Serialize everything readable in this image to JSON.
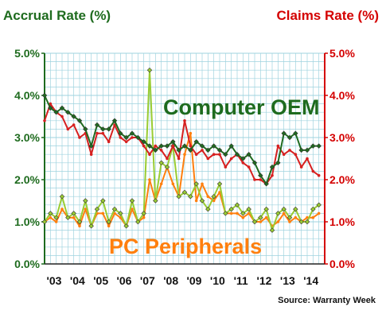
{
  "chart_data": {
    "type": "line",
    "left_axis_title": "Accrual Rate (%)",
    "right_axis_title": "Claims Rate (%)",
    "y_ticks": [
      "0.0%",
      "1.0%",
      "2.0%",
      "3.0%",
      "4.0%",
      "5.0%"
    ],
    "ylim": [
      0,
      5
    ],
    "x_ticks": [
      "'03",
      "'04",
      "'05",
      "'06",
      "'07",
      "'08",
      "'09",
      "'10",
      "'11",
      "'12",
      "'13",
      "'14"
    ],
    "xlim": [
      2003,
      2015
    ],
    "grid": true,
    "annotations": [
      "Computer OEM",
      "PC Peripherals"
    ],
    "source": "Source: Warranty Week",
    "colors": {
      "oem_accrual": "#1f6b1f",
      "oem_claims": "#d62020",
      "pc_accrual": "#99cc33",
      "pc_claims": "#ff7f0e",
      "left_axis": "#1e6b1e",
      "right_axis": "#d40000",
      "grid": "#9fd3df"
    },
    "series": [
      {
        "key": "oem_accrual",
        "axis": "left",
        "x": [
          2003.0,
          2003.25,
          2003.5,
          2003.75,
          2004.0,
          2004.25,
          2004.5,
          2004.75,
          2005.0,
          2005.25,
          2005.5,
          2005.75,
          2006.0,
          2006.25,
          2006.5,
          2006.75,
          2007.0,
          2007.25,
          2007.5,
          2007.75,
          2008.0,
          2008.25,
          2008.5,
          2008.75,
          2009.0,
          2009.25,
          2009.5,
          2009.75,
          2010.0,
          2010.25,
          2010.5,
          2010.75,
          2011.0,
          2011.25,
          2011.5,
          2011.75,
          2012.0,
          2012.25,
          2012.5,
          2012.75,
          2013.0,
          2013.25,
          2013.5,
          2013.75,
          2014.0,
          2014.25,
          2014.5,
          2014.75
        ],
        "y": [
          4.0,
          3.7,
          3.6,
          3.7,
          3.6,
          3.5,
          3.4,
          3.2,
          2.8,
          3.3,
          3.2,
          3.2,
          3.4,
          3.1,
          3.0,
          3.1,
          3.0,
          2.9,
          2.8,
          2.7,
          2.8,
          2.8,
          2.9,
          2.7,
          2.8,
          2.7,
          2.9,
          2.8,
          2.7,
          2.8,
          2.7,
          2.6,
          2.8,
          2.6,
          2.5,
          2.6,
          2.4,
          2.1,
          1.9,
          2.3,
          2.4,
          3.1,
          3.0,
          3.1,
          2.7,
          2.7,
          2.8,
          2.8
        ]
      },
      {
        "key": "oem_claims",
        "axis": "right",
        "x": [
          2003.0,
          2003.25,
          2003.5,
          2003.75,
          2004.0,
          2004.25,
          2004.5,
          2004.75,
          2005.0,
          2005.25,
          2005.5,
          2005.75,
          2006.0,
          2006.25,
          2006.5,
          2006.75,
          2007.0,
          2007.25,
          2007.5,
          2007.75,
          2008.0,
          2008.25,
          2008.5,
          2008.75,
          2009.0,
          2009.25,
          2009.5,
          2009.75,
          2010.0,
          2010.25,
          2010.5,
          2010.75,
          2011.0,
          2011.25,
          2011.5,
          2011.75,
          2012.0,
          2012.25,
          2012.5,
          2012.75,
          2013.0,
          2013.25,
          2013.5,
          2013.75,
          2014.0,
          2014.25,
          2014.5,
          2014.75
        ],
        "y": [
          3.4,
          3.8,
          3.6,
          3.5,
          3.2,
          3.3,
          3.0,
          3.1,
          2.6,
          3.1,
          3.1,
          2.9,
          3.3,
          3.0,
          2.9,
          3.0,
          3.0,
          2.8,
          2.6,
          2.8,
          2.7,
          2.5,
          2.8,
          2.5,
          3.4,
          2.8,
          2.6,
          2.7,
          2.5,
          2.6,
          2.6,
          2.3,
          2.5,
          2.6,
          2.4,
          2.3,
          2.0,
          2.0,
          1.9,
          2.1,
          2.8,
          2.6,
          2.7,
          2.6,
          2.3,
          2.5,
          2.2,
          2.1
        ]
      },
      {
        "key": "pc_accrual",
        "axis": "left",
        "x": [
          2003.0,
          2003.25,
          2003.5,
          2003.75,
          2004.0,
          2004.25,
          2004.5,
          2004.75,
          2005.0,
          2005.25,
          2005.5,
          2005.75,
          2006.0,
          2006.25,
          2006.5,
          2006.75,
          2007.0,
          2007.25,
          2007.5,
          2007.75,
          2008.0,
          2008.25,
          2008.5,
          2008.75,
          2009.0,
          2009.25,
          2009.5,
          2009.75,
          2010.0,
          2010.25,
          2010.5,
          2010.75,
          2011.0,
          2011.25,
          2011.5,
          2011.75,
          2012.0,
          2012.25,
          2012.5,
          2012.75,
          2013.0,
          2013.25,
          2013.5,
          2013.75,
          2014.0,
          2014.25,
          2014.5,
          2014.75
        ],
        "y": [
          1.0,
          1.2,
          1.1,
          1.6,
          1.1,
          1.2,
          1.0,
          1.5,
          0.9,
          1.3,
          1.5,
          1.0,
          1.3,
          1.2,
          0.9,
          1.5,
          1.0,
          1.2,
          4.6,
          1.5,
          2.4,
          2.3,
          2.8,
          1.6,
          1.7,
          1.6,
          1.9,
          1.5,
          1.3,
          1.6,
          1.9,
          1.2,
          1.3,
          1.4,
          1.2,
          1.3,
          1.0,
          1.1,
          1.3,
          0.8,
          1.2,
          1.3,
          1.1,
          1.3,
          1.0,
          1.0,
          1.3,
          1.4
        ]
      },
      {
        "key": "pc_claims",
        "axis": "right",
        "x": [
          2003.0,
          2003.25,
          2003.5,
          2003.75,
          2004.0,
          2004.25,
          2004.5,
          2004.75,
          2005.0,
          2005.25,
          2005.5,
          2005.75,
          2006.0,
          2006.25,
          2006.5,
          2006.75,
          2007.0,
          2007.25,
          2007.5,
          2007.75,
          2008.0,
          2008.25,
          2008.5,
          2008.75,
          2009.0,
          2009.25,
          2009.5,
          2009.75,
          2010.0,
          2010.25,
          2010.5,
          2010.75,
          2011.0,
          2011.25,
          2011.5,
          2011.75,
          2012.0,
          2012.25,
          2012.5,
          2012.75,
          2013.0,
          2013.25,
          2013.5,
          2013.75,
          2014.0,
          2014.25,
          2014.5,
          2014.75
        ],
        "y": [
          1.0,
          1.1,
          1.0,
          1.3,
          1.1,
          1.1,
          0.9,
          1.3,
          0.9,
          1.2,
          1.2,
          0.9,
          1.2,
          1.1,
          0.9,
          1.3,
          1.0,
          1.1,
          2.0,
          1.5,
          1.9,
          2.3,
          1.9,
          1.6,
          2.6,
          3.1,
          1.5,
          1.9,
          1.6,
          1.5,
          1.7,
          1.2,
          1.2,
          1.2,
          1.1,
          1.2,
          1.0,
          1.0,
          1.1,
          0.9,
          1.0,
          1.2,
          1.0,
          1.1,
          1.0,
          1.1,
          1.1,
          1.2
        ]
      }
    ]
  }
}
